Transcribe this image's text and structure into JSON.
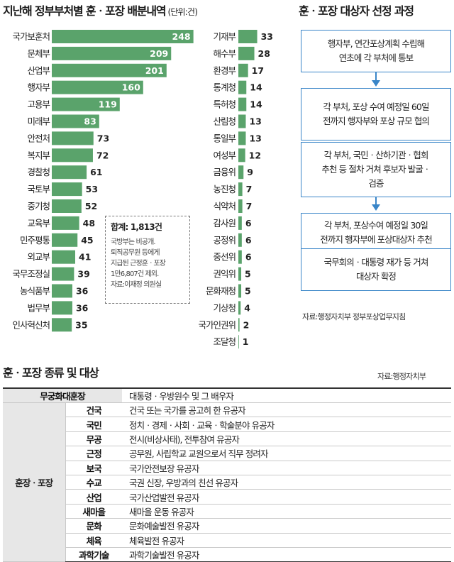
{
  "colors": {
    "bar": "#5aa36b",
    "flow_border": "#3a86c8",
    "flow_arrow": "#3a86c8",
    "group_bg": "#e7e7e7"
  },
  "chart_title": "지난해 정부부처별 훈ㆍ포장 배분내역",
  "chart_unit": "(단위:건)",
  "chart_data": [
    {
      "type": "bar",
      "orientation": "horizontal",
      "categories": [
        "국가보훈처",
        "문체부",
        "산업부",
        "행자부",
        "고용부",
        "미래부",
        "안전처",
        "복지부",
        "경찰청",
        "국토부",
        "중기청",
        "교육부",
        "민주평통",
        "외교부",
        "국무조정실",
        "농식품부",
        "법무부",
        "인사혁신처"
      ],
      "values": [
        248,
        209,
        201,
        160,
        119,
        83,
        73,
        72,
        61,
        53,
        52,
        48,
        45,
        41,
        39,
        36,
        36,
        35
      ],
      "xlim": [
        0,
        260
      ]
    },
    {
      "type": "bar",
      "orientation": "horizontal",
      "categories": [
        "기재부",
        "해수부",
        "환경부",
        "통계청",
        "특허청",
        "산림청",
        "통일부",
        "여성부",
        "금융위",
        "농진청",
        "식약처",
        "감사원",
        "공정위",
        "중선위",
        "권익위",
        "문화재청",
        "기상청",
        "국가인권위",
        "조달청"
      ],
      "values": [
        33,
        28,
        17,
        14,
        14,
        13,
        13,
        12,
        9,
        7,
        7,
        6,
        6,
        6,
        5,
        5,
        4,
        2,
        1
      ],
      "xlim": [
        0,
        260
      ]
    }
  ],
  "note": {
    "title": "합계: 1,813건",
    "lines": [
      "국방부는 비공개.",
      "퇴직공무원 등에게",
      "지급된 근정훈ㆍ포장",
      "1만6,807건 제외.",
      "자료:이재정 의원실"
    ]
  },
  "flow": {
    "title": "훈ㆍ포장 대상자 선정 과정",
    "steps": [
      [
        "행자부, 연간포상계획 수립해",
        "연초에 각 부처에 통보"
      ],
      [
        "각 부처, 포상 수여 예정일 60일",
        "전까지 행자부와 포상 규모 협의"
      ],
      [
        "각 부처, 국민ㆍ산하기관ㆍ협회",
        "추천 등 절차 거쳐 후보자 발굴ㆍ",
        "검증"
      ],
      [
        "각 부처, 포상수여 예정일 30일",
        "전까지 행자부에 포상대상자 추천"
      ],
      [
        "국무회의ㆍ대통령 재가 등 거쳐",
        "대상자 확정"
      ]
    ],
    "source": "자료:행정자치부 정부포상업무지침"
  },
  "awards": {
    "title": "훈ㆍ포장 종류 및 대상",
    "source": "자료:행정자치부",
    "top_name": "무궁화대훈장",
    "top_desc": "대통령ㆍ우방원수 및 그 배우자",
    "group_label": "훈장ㆍ포장",
    "rows": [
      {
        "name": "건국",
        "desc": "건국 또는 국가를 공고히 한 유공자"
      },
      {
        "name": "국민",
        "desc": "정치ㆍ경제ㆍ사회ㆍ교육ㆍ학술분야 유공자"
      },
      {
        "name": "무공",
        "desc": "전시(비상사태), 전투참여 유공자"
      },
      {
        "name": "근정",
        "desc": "공무원, 사립학교 교원으로서 직무 정려자"
      },
      {
        "name": "보국",
        "desc": "국가안전보장 유공자"
      },
      {
        "name": "수교",
        "desc": "국권 신장, 우방과의 친선 유공자"
      },
      {
        "name": "산업",
        "desc": "국가산업발전 유공자"
      },
      {
        "name": "새마을",
        "desc": "새마을 운동 유공자"
      },
      {
        "name": "문화",
        "desc": "문화예술발전 유공자"
      },
      {
        "name": "체육",
        "desc": "체육발전 유공자"
      },
      {
        "name": "과학기술",
        "desc": "과학기술발전 유공자"
      }
    ]
  }
}
